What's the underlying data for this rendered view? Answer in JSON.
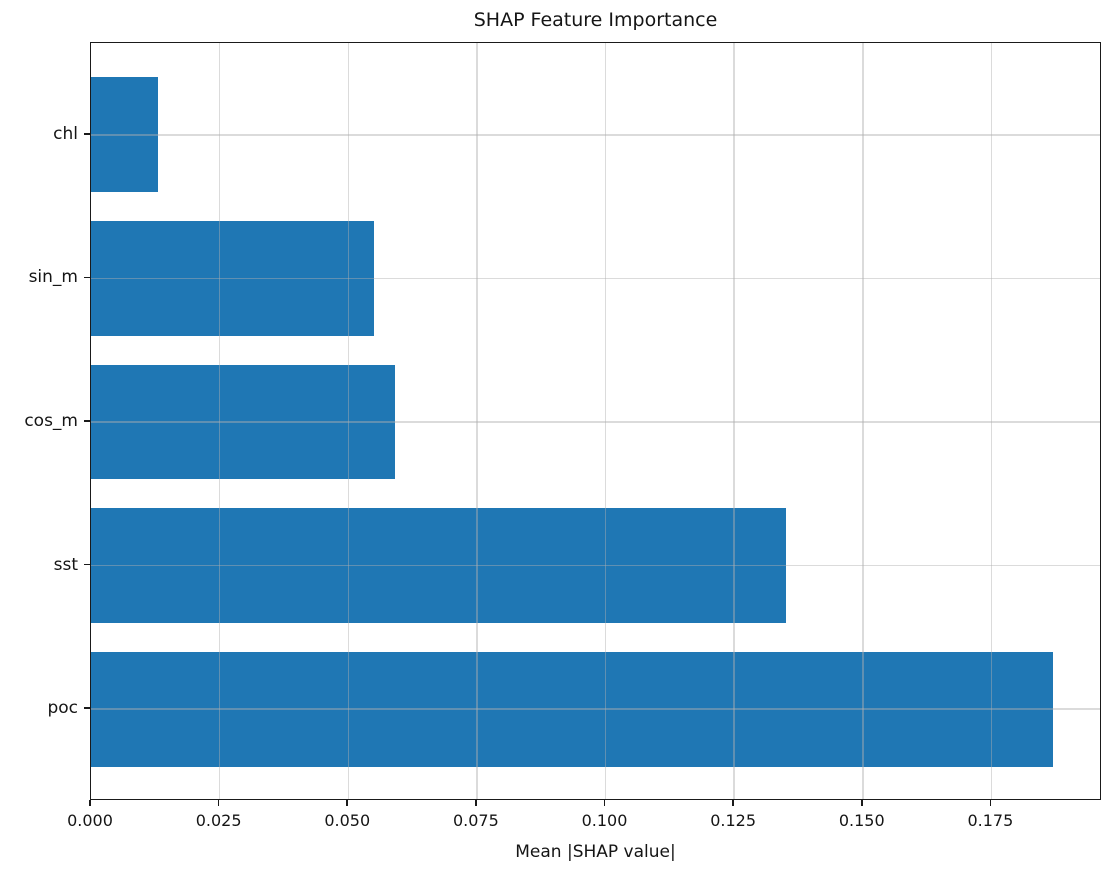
{
  "chart_data": {
    "type": "bar",
    "orientation": "horizontal",
    "title": "SHAP Feature Importance",
    "xlabel": "Mean |SHAP value|",
    "ylabel": "",
    "categories": [
      "chl",
      "sin_m",
      "cos_m",
      "sst",
      "poc"
    ],
    "categories_order": "top-to-bottom",
    "values": [
      0.013,
      0.055,
      0.059,
      0.135,
      0.187
    ],
    "xlim": [
      0,
      0.1965
    ],
    "xticks": [
      0.0,
      0.025,
      0.05,
      0.075,
      0.1,
      0.125,
      0.15,
      0.175
    ],
    "xtick_labels": [
      "0.000",
      "0.025",
      "0.050",
      "0.075",
      "0.100",
      "0.125",
      "0.150",
      "0.175"
    ],
    "grid": true,
    "legend": false,
    "bar_color": "#1f77b4",
    "grid_color": "#b0b0b0",
    "spine_color": "#1a1a1a",
    "text_color": "#151515",
    "background_color": "#ffffff"
  }
}
